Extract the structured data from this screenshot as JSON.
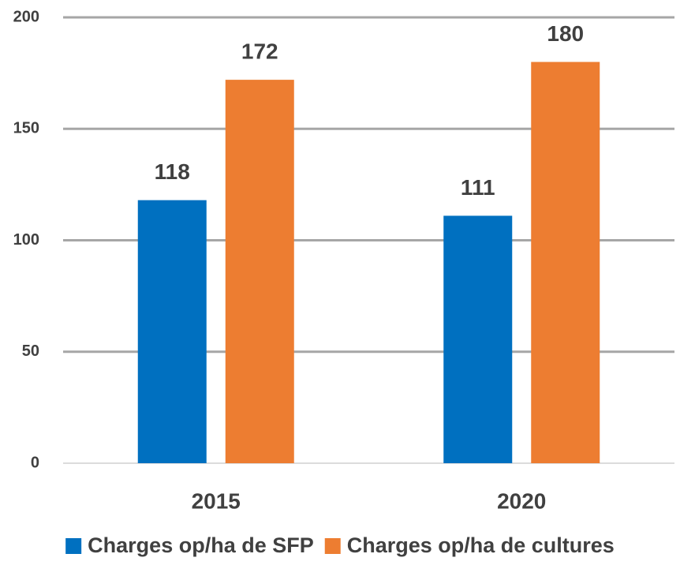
{
  "chart_data": {
    "type": "bar",
    "categories": [
      "2015",
      "2020"
    ],
    "series": [
      {
        "name": "Charges op/ha de SFP",
        "color": "#0070c0",
        "values": [
          118,
          111
        ]
      },
      {
        "name": "Charges op/ha de cultures",
        "color": "#ed7d31",
        "values": [
          172,
          180
        ]
      }
    ],
    "ylim": [
      0,
      200
    ],
    "yticks": [
      0,
      50,
      100,
      150,
      200
    ],
    "grid": true,
    "legend": "bottom"
  }
}
